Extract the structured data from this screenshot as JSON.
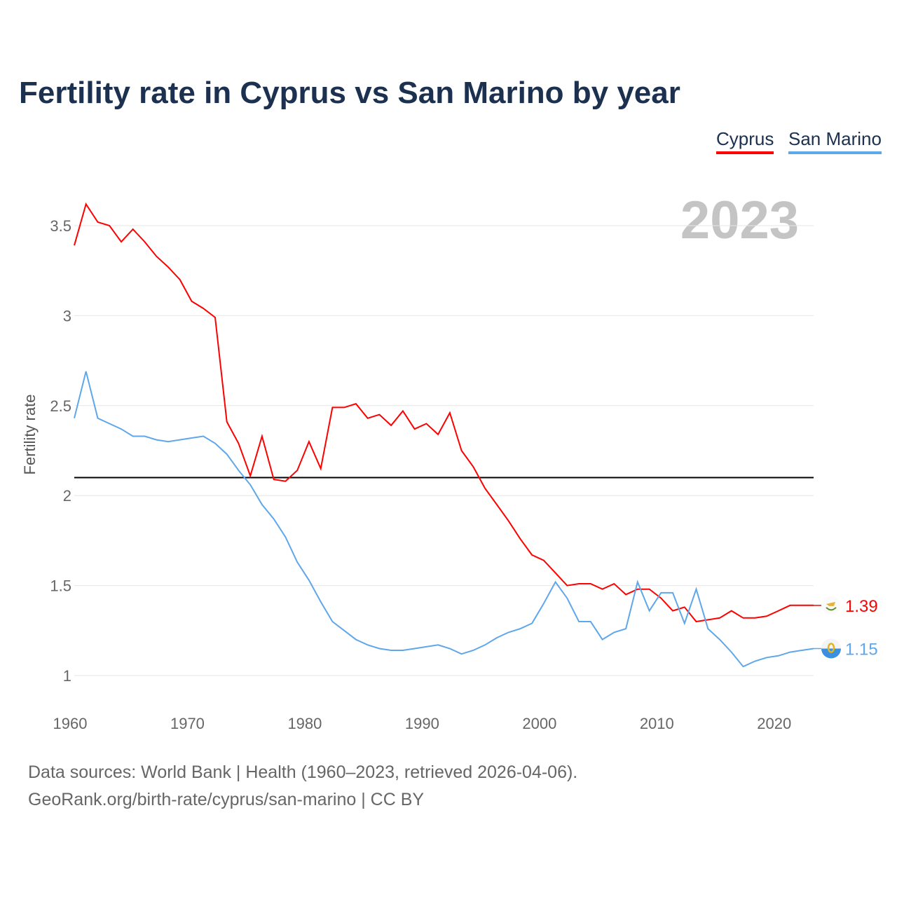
{
  "title": "Fertility rate in Cyprus vs San Marino by year",
  "legend": [
    "Cyprus",
    "San Marino"
  ],
  "year_label": "2023",
  "sources": [
    "Data sources: World Bank | Health (1960–2023, retrieved 2026-04-06).",
    "GeoRank.org/birth-rate/cyprus/san-marino | CC BY"
  ],
  "chart_data": {
    "type": "line",
    "title": "Fertility rate in Cyprus vs San Marino by year",
    "xlabel": "",
    "ylabel": "Fertility rate",
    "xlim": [
      1960,
      2023
    ],
    "ylim": [
      0.85,
      3.7
    ],
    "xticks": [
      1960,
      1970,
      1980,
      1990,
      2000,
      2010,
      2020
    ],
    "yticks": [
      1,
      1.5,
      2,
      2.5,
      3,
      3.5
    ],
    "ytick_labels": [
      "1",
      "1.5",
      "2",
      "2.5",
      "3",
      "3.5"
    ],
    "reference_line": 2.1,
    "legend_position": "top-right",
    "x_start": 1960,
    "series": [
      {
        "name": "Cyprus",
        "color": "#ff0000",
        "end_label": "1.39",
        "values": [
          3.39,
          3.62,
          3.52,
          3.5,
          3.41,
          3.48,
          3.41,
          3.33,
          3.27,
          3.2,
          3.08,
          3.04,
          2.99,
          2.41,
          2.29,
          2.11,
          2.33,
          2.09,
          2.08,
          2.14,
          2.3,
          2.15,
          2.49,
          2.49,
          2.51,
          2.43,
          2.45,
          2.39,
          2.47,
          2.37,
          2.4,
          2.34,
          2.46,
          2.25,
          2.16,
          2.04,
          1.95,
          1.86,
          1.76,
          1.67,
          1.64,
          1.57,
          1.5,
          1.51,
          1.51,
          1.48,
          1.51,
          1.45,
          1.48,
          1.48,
          1.43,
          1.36,
          1.38,
          1.3,
          1.31,
          1.32,
          1.36,
          1.32,
          1.32,
          1.33,
          1.36,
          1.39,
          1.39,
          1.39
        ]
      },
      {
        "name": "San Marino",
        "color": "#5ea7ea",
        "end_label": "1.15",
        "values": [
          2.43,
          2.69,
          2.43,
          2.4,
          2.37,
          2.33,
          2.33,
          2.31,
          2.3,
          2.31,
          2.32,
          2.33,
          2.29,
          2.23,
          2.14,
          2.06,
          1.95,
          1.87,
          1.77,
          1.63,
          1.53,
          1.41,
          1.3,
          1.25,
          1.2,
          1.17,
          1.15,
          1.14,
          1.14,
          1.15,
          1.16,
          1.17,
          1.15,
          1.12,
          1.14,
          1.17,
          1.21,
          1.24,
          1.26,
          1.29,
          1.4,
          1.52,
          1.43,
          1.3,
          1.3,
          1.2,
          1.24,
          1.26,
          1.52,
          1.36,
          1.46,
          1.46,
          1.29,
          1.48,
          1.26,
          1.2,
          1.13,
          1.05,
          1.08,
          1.1,
          1.11,
          1.13,
          1.14,
          1.15
        ]
      }
    ]
  }
}
